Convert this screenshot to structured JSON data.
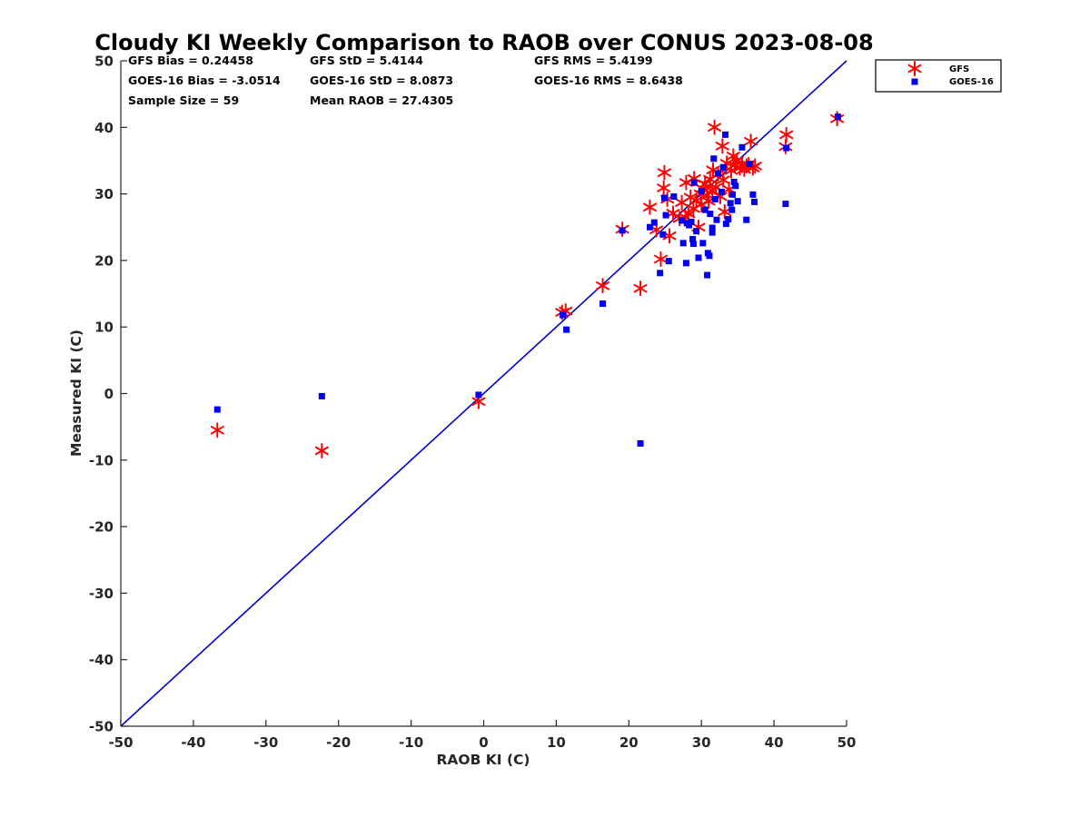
{
  "chart_data": {
    "type": "scatter",
    "title": "Cloudy KI Weekly Comparison to RAOB over CONUS 2023-08-08",
    "xlabel": "RAOB KI (C)",
    "ylabel": "Measured KI (C)",
    "xlim": [
      -50,
      50
    ],
    "ylim": [
      -50,
      50
    ],
    "xticks": [
      "-50",
      "-40",
      "-30",
      "-20",
      "-10",
      "0",
      "10",
      "20",
      "30",
      "40",
      "50"
    ],
    "yticks": [
      "-50",
      "-40",
      "-30",
      "-20",
      "-10",
      "0",
      "10",
      "20",
      "30",
      "40",
      "50"
    ],
    "grid": false,
    "legend_position": "outside-top-right",
    "reference_line": {
      "type": "one-to-one",
      "color": "#0000cc"
    },
    "stats": [
      [
        "GFS Bias = 0.24458",
        "GFS StD = 5.4144",
        "GFS RMS = 5.4199"
      ],
      [
        "GOES-16 Bias = -3.0514",
        "GOES-16 StD = 8.0873",
        "GOES-16 RMS = 8.6438"
      ],
      [
        "Sample Size = 59",
        "Mean RAOB = 27.4305",
        ""
      ]
    ],
    "series": [
      {
        "name": "GFS",
        "marker": "asterisk",
        "color": "#ff0000",
        "points": [
          [
            -36.7,
            -5.5
          ],
          [
            -22.3,
            -8.6
          ],
          [
            -0.7,
            -1.2
          ],
          [
            10.8,
            12.2
          ],
          [
            11.3,
            12.4
          ],
          [
            16.4,
            16.2
          ],
          [
            19.1,
            24.7
          ],
          [
            21.6,
            15.8
          ],
          [
            22.9,
            28.0
          ],
          [
            23.8,
            24.6
          ],
          [
            24.4,
            20.2
          ],
          [
            24.8,
            30.9
          ],
          [
            24.9,
            33.2
          ],
          [
            25.6,
            23.7
          ],
          [
            26.1,
            27.1
          ],
          [
            27.0,
            26.3
          ],
          [
            27.3,
            28.7
          ],
          [
            27.9,
            31.7
          ],
          [
            28.2,
            27.0
          ],
          [
            28.5,
            29.5
          ],
          [
            28.9,
            27.8
          ],
          [
            29.3,
            29.0
          ],
          [
            29.6,
            25.0
          ],
          [
            29.9,
            30.0
          ],
          [
            30.2,
            30.8
          ],
          [
            30.5,
            31.5
          ],
          [
            30.8,
            29.8
          ],
          [
            31.0,
            28.9
          ],
          [
            31.2,
            32.2
          ],
          [
            31.5,
            30.5
          ],
          [
            31.8,
            40.0
          ],
          [
            32.0,
            31.0
          ],
          [
            32.3,
            33.0
          ],
          [
            32.6,
            29.6
          ],
          [
            32.9,
            37.2
          ],
          [
            33.2,
            27.3
          ],
          [
            33.5,
            34.6
          ],
          [
            33.8,
            30.7
          ],
          [
            34.1,
            33.5
          ],
          [
            34.4,
            35.7
          ],
          [
            34.6,
            34.3
          ],
          [
            34.9,
            35.0
          ],
          [
            35.3,
            33.9
          ],
          [
            35.6,
            34.3
          ],
          [
            35.9,
            33.7
          ],
          [
            36.2,
            34.2
          ],
          [
            36.5,
            34.4
          ],
          [
            36.8,
            37.9
          ],
          [
            37.1,
            33.9
          ],
          [
            37.4,
            34.2
          ],
          [
            41.6,
            37.1
          ],
          [
            41.7,
            38.9
          ],
          [
            48.7,
            41.3
          ],
          [
            25.3,
            29.2
          ],
          [
            27.8,
            26.5
          ],
          [
            29.0,
            32.3
          ],
          [
            30.0,
            28.4
          ],
          [
            31.6,
            33.6
          ],
          [
            33.0,
            32.1
          ]
        ]
      },
      {
        "name": "GOES-16",
        "marker": "square",
        "color": "#0000ee",
        "points": [
          [
            -36.7,
            -2.4
          ],
          [
            -22.3,
            -0.4
          ],
          [
            -0.7,
            -0.2
          ],
          [
            10.9,
            11.8
          ],
          [
            11.4,
            9.6
          ],
          [
            16.4,
            13.5
          ],
          [
            19.1,
            24.5
          ],
          [
            21.6,
            -7.5
          ],
          [
            22.9,
            25.0
          ],
          [
            23.5,
            25.7
          ],
          [
            24.3,
            18.1
          ],
          [
            24.7,
            23.9
          ],
          [
            24.9,
            29.4
          ],
          [
            25.1,
            26.8
          ],
          [
            25.5,
            19.9
          ],
          [
            26.2,
            29.6
          ],
          [
            27.3,
            26.0
          ],
          [
            27.5,
            22.6
          ],
          [
            27.9,
            19.6
          ],
          [
            28.0,
            25.6
          ],
          [
            28.3,
            25.3
          ],
          [
            28.6,
            25.8
          ],
          [
            28.8,
            23.2
          ],
          [
            28.9,
            22.5
          ],
          [
            29.0,
            31.7
          ],
          [
            29.3,
            24.4
          ],
          [
            29.6,
            20.4
          ],
          [
            30.0,
            30.4
          ],
          [
            30.2,
            22.6
          ],
          [
            30.5,
            27.6
          ],
          [
            30.8,
            17.8
          ],
          [
            30.9,
            21.1
          ],
          [
            31.1,
            20.7
          ],
          [
            31.2,
            27.0
          ],
          [
            31.5,
            24.2
          ],
          [
            31.5,
            24.9
          ],
          [
            31.7,
            35.3
          ],
          [
            31.9,
            29.2
          ],
          [
            32.1,
            26.1
          ],
          [
            32.3,
            33.1
          ],
          [
            32.8,
            30.3
          ],
          [
            33.0,
            34.0
          ],
          [
            33.3,
            38.9
          ],
          [
            33.4,
            25.5
          ],
          [
            33.7,
            26.2
          ],
          [
            34.0,
            28.6
          ],
          [
            34.2,
            27.6
          ],
          [
            34.3,
            29.9
          ],
          [
            34.5,
            31.8
          ],
          [
            34.7,
            31.2
          ],
          [
            35.0,
            28.9
          ],
          [
            35.6,
            37.0
          ],
          [
            36.2,
            26.1
          ],
          [
            36.6,
            34.5
          ],
          [
            37.1,
            29.9
          ],
          [
            37.3,
            28.8
          ],
          [
            41.6,
            28.5
          ],
          [
            41.7,
            36.9
          ],
          [
            48.8,
            41.6
          ]
        ]
      }
    ]
  }
}
